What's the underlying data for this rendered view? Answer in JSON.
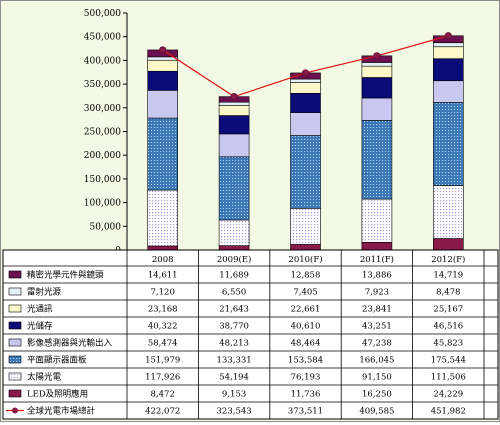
{
  "chart_data": {
    "type": "bar",
    "stacked": true,
    "categories": [
      "2008",
      "2009(E)",
      "2010(F)",
      "2011(F)",
      "2012(F)"
    ],
    "ylim": [
      0,
      500000
    ],
    "y_ticks": [
      "0",
      "50,000",
      "100,000",
      "150,000",
      "200,000",
      "250,000",
      "300,000",
      "350,000",
      "400,000",
      "450,000",
      "500,000"
    ],
    "series": [
      {
        "name": "LED及照明應用",
        "color": "#8a1a4a",
        "pattern": "solid",
        "values": [
          8472,
          9153,
          11736,
          16250,
          24229
        ],
        "labels": [
          "8,472",
          "9,153",
          "11,736",
          "16,250",
          "24,229"
        ]
      },
      {
        "name": "太陽光電",
        "color": "#a89ad8",
        "pattern": "dots",
        "values": [
          117926,
          54194,
          76193,
          91150,
          111506
        ],
        "labels": [
          "117,926",
          "54,194",
          "76,193",
          "91,150",
          "111,506"
        ]
      },
      {
        "name": "平面顯示器面板",
        "color": "#3b78b8",
        "pattern": "grid",
        "values": [
          151979,
          133331,
          153584,
          166045,
          175544
        ],
        "labels": [
          "151,979",
          "133,331",
          "153,584",
          "166,045",
          "175,544"
        ]
      },
      {
        "name": "影像感測器與光輸出入",
        "color": "#c8c8f0",
        "pattern": "solid",
        "values": [
          58474,
          48213,
          48464,
          47238,
          45823
        ],
        "labels": [
          "58,474",
          "48,213",
          "48,464",
          "47,238",
          "45,823"
        ]
      },
      {
        "name": "光儲存",
        "color": "#0a0a78",
        "pattern": "solid",
        "values": [
          40322,
          38770,
          40610,
          43251,
          46516
        ],
        "labels": [
          "40,322",
          "38,770",
          "40,610",
          "43,251",
          "46,516"
        ]
      },
      {
        "name": "光通訊",
        "color": "#fbf7c8",
        "pattern": "solid",
        "values": [
          23168,
          21643,
          22661,
          23841,
          25167
        ],
        "labels": [
          "23,168",
          "21,643",
          "22,661",
          "23,841",
          "25,167"
        ]
      },
      {
        "name": "雷射光源",
        "color": "#e2f0f8",
        "pattern": "solid",
        "values": [
          7120,
          6550,
          7405,
          7923,
          8478
        ],
        "labels": [
          "7,120",
          "6,550",
          "7,405",
          "7,923",
          "8,478"
        ]
      },
      {
        "name": "精密光學元件與鏡頭",
        "color": "#6a1050",
        "pattern": "solid",
        "values": [
          14611,
          11689,
          12858,
          13886,
          14719
        ],
        "labels": [
          "14,611",
          "11,689",
          "12,858",
          "13,886",
          "14,719"
        ]
      }
    ],
    "line": {
      "name": "全球光電市場總計",
      "color": "#dd1111",
      "values": [
        422072,
        323543,
        373511,
        409585,
        451982
      ],
      "labels": [
        "422,072",
        "323,543",
        "373,511",
        "409,585",
        "451,982"
      ]
    },
    "table_row_order": [
      "精密光學元件與鏡頭",
      "雷射光源",
      "光通訊",
      "光儲存",
      "影像感測器與光輸出入",
      "平面顯示器面板",
      "太陽光電",
      "LED及照明應用",
      "全球光電市場總計"
    ],
    "grid": false,
    "legend": "data-table"
  }
}
